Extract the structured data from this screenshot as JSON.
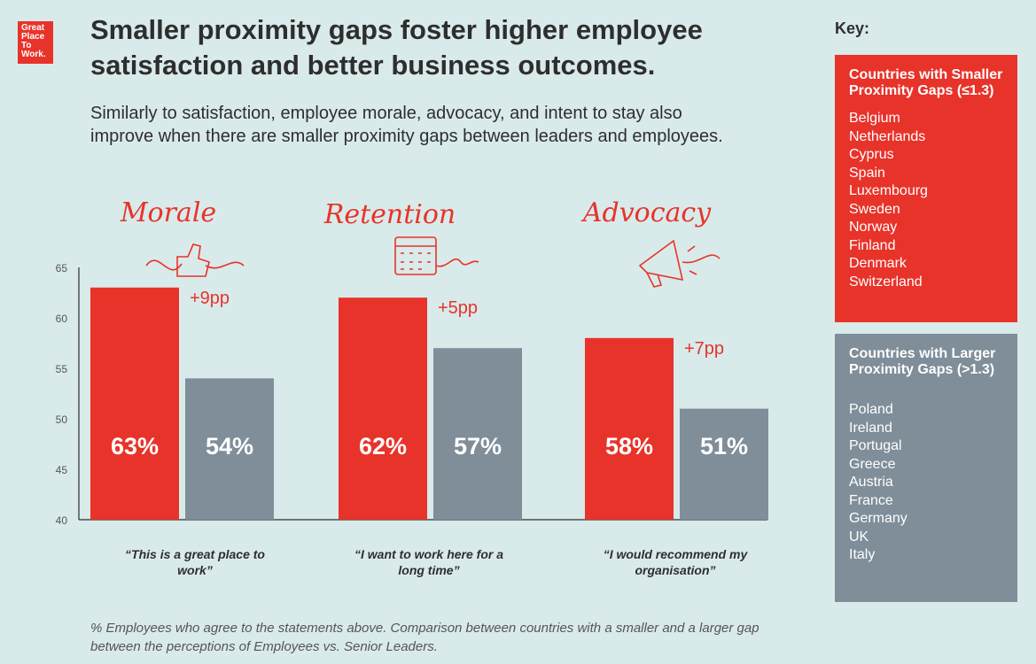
{
  "logo": {
    "lines": [
      "Great",
      "Place",
      "To",
      "Work."
    ]
  },
  "header": {
    "title": "Smaller proximity gaps foster higher employee satisfaction and better business outcomes.",
    "subtitle": "Similarly to satisfaction, employee morale, advocacy, and intent to stay also improve when there are smaller proximity gaps between leaders and employees."
  },
  "colors": {
    "smaller": "#e8332a",
    "larger": "#7f8e99",
    "accent_text": "#e8332a"
  },
  "chart_data": {
    "type": "bar",
    "categories": [
      "Morale",
      "Retention",
      "Advocacy"
    ],
    "quotes": [
      "“This is a great place to work”",
      "“I want to work here for a long time”",
      "“I would recommend my organisation”"
    ],
    "series": [
      {
        "name": "Countries with Smaller Proximity Gaps (≤1.3)",
        "values": [
          63,
          62,
          58
        ],
        "labels": [
          "63%",
          "62%",
          "58%"
        ]
      },
      {
        "name": "Countries with Larger Proximity Gaps (>1.3)",
        "values": [
          54,
          57,
          51
        ],
        "labels": [
          "54%",
          "57%",
          "51%"
        ]
      }
    ],
    "differences": [
      "+9pp",
      "+5pp",
      "+7pp"
    ],
    "ylim": [
      40,
      65
    ],
    "yticks": [
      65,
      60,
      55,
      50,
      45,
      40
    ],
    "icons": [
      "thumbs-up-icon",
      "calendar-icon",
      "megaphone-icon"
    ]
  },
  "key": {
    "label": "Key:",
    "smaller": {
      "heading": "Countries with Smaller Proximity Gaps (≤1.3)",
      "countries": [
        "Belgium",
        "Netherlands",
        "Cyprus",
        "Spain",
        "Luxembourg",
        "Sweden",
        "Norway",
        "Finland",
        "Denmark",
        "Switzerland"
      ]
    },
    "larger": {
      "heading": "Countries with Larger Proximity Gaps (>1.3)",
      "countries": [
        "Poland",
        "Ireland",
        "Portugal",
        "Greece",
        "Austria",
        "France",
        "Germany",
        "UK",
        "Italy"
      ]
    }
  },
  "footnote": "% Employees who agree to the statements above. Comparison between countries with a smaller and a larger gap between the perceptions of Employees vs. Senior Leaders."
}
